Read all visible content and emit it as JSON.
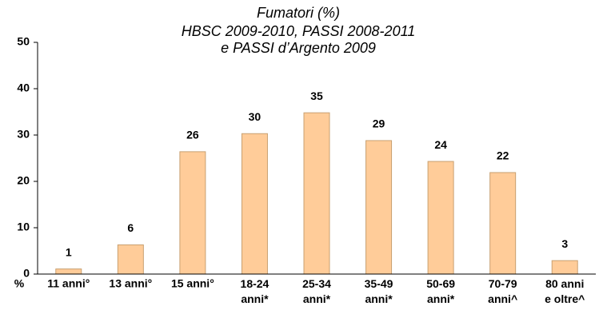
{
  "chart_data": {
    "type": "bar",
    "title": "Fumatori (%)",
    "subtitle": "HBSC 2009-2010, PASSI 2008-2011\ne PASSI d’Argento 2009",
    "y_label": "%",
    "categories": [
      "11 anni°",
      "13 anni°",
      "15 anni°",
      "18-24\nanni*",
      "25-34\nanni*",
      "35-49\nanni*",
      "50-69\nanni*",
      "70-79\nanni^",
      "80 anni\ne oltre^"
    ],
    "values": [
      1.1,
      6.3,
      26.4,
      30.3,
      34.8,
      28.8,
      24.3,
      21.9,
      2.9
    ],
    "value_labels": [
      "1",
      "6",
      "26",
      "30",
      "35",
      "29",
      "24",
      "22",
      "3"
    ],
    "color": "#ffcc99",
    "ylim": [
      0,
      50
    ],
    "yticks": [
      0,
      10,
      20,
      30,
      40,
      50
    ],
    "grid": false
  }
}
